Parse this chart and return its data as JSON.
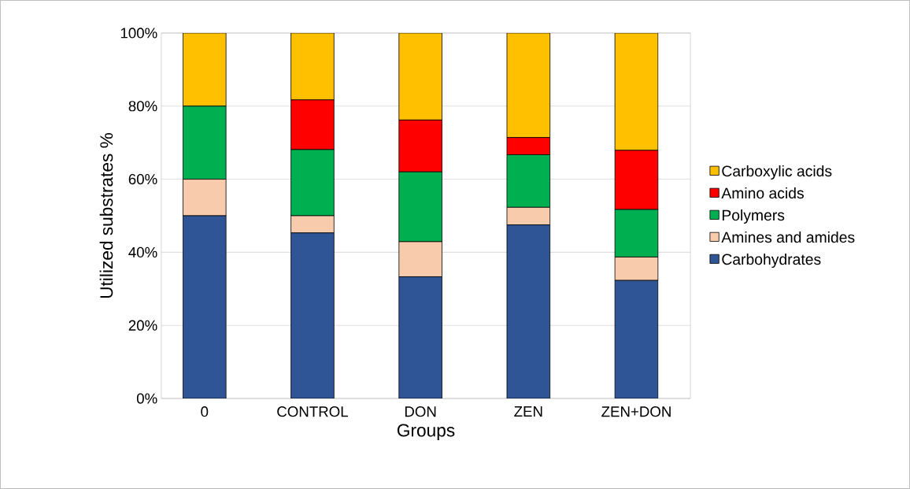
{
  "chart_data": {
    "type": "bar",
    "stacked": true,
    "xlabel": "Groups",
    "ylabel": "Utilized substrates %",
    "categories": [
      "0",
      "CONTROL",
      "DON",
      "ZEN",
      "ZEN+DON"
    ],
    "series": [
      {
        "name": "Carbohydrates",
        "color": "#2f5597",
        "values": [
          50,
          45.3,
          33.3,
          47.5,
          32.3
        ]
      },
      {
        "name": "Amines and amides",
        "color": "#f8cbad",
        "values": [
          10,
          4.7,
          9.6,
          4.8,
          6.4
        ]
      },
      {
        "name": "Polymers",
        "color": "#00b050",
        "values": [
          20,
          18.1,
          19.1,
          14.4,
          13
        ]
      },
      {
        "name": "Amino acids",
        "color": "#ff0000",
        "values": [
          0,
          13.6,
          14.2,
          4.7,
          16.2
        ]
      },
      {
        "name": "Carboxylic acids",
        "color": "#ffc000",
        "values": [
          20,
          18.3,
          23.8,
          28.6,
          32.1
        ]
      }
    ],
    "ylim": [
      0,
      100
    ],
    "yticks": [
      {
        "value": 0,
        "label": "0%"
      },
      {
        "value": 20,
        "label": "20%"
      },
      {
        "value": 40,
        "label": "40%"
      },
      {
        "value": 60,
        "label": "60%"
      },
      {
        "value": 80,
        "label": "80%"
      },
      {
        "value": 100,
        "label": "100%"
      }
    ],
    "grid": "y",
    "legend": "right"
  }
}
